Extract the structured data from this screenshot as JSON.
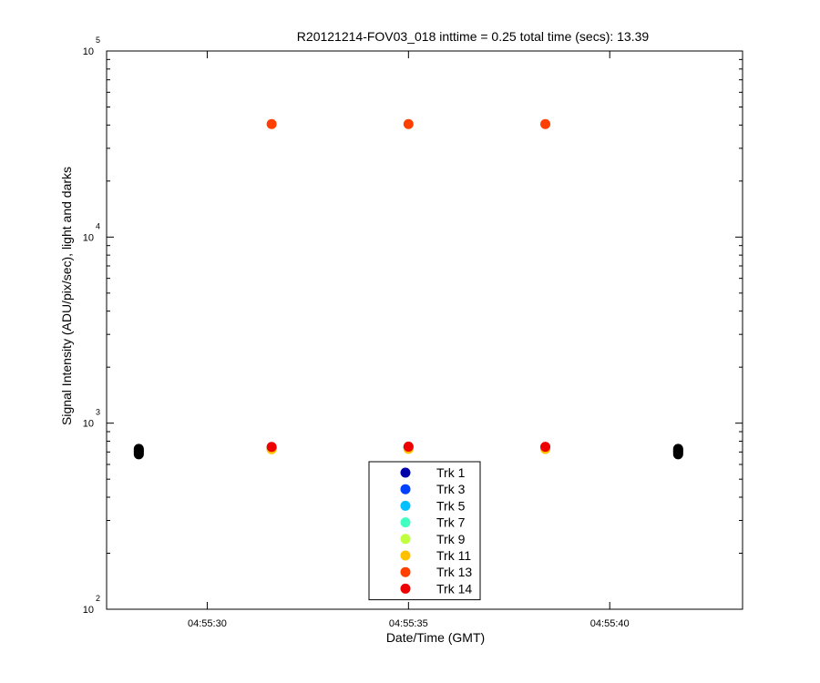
{
  "chart_data": {
    "type": "scatter",
    "title": "R20121214-FOV03_018 inttime = 0.25 total time (secs): 13.39",
    "xlabel": "Date/Time (GMT)",
    "ylabel": "Signal Intensity (ADU/pix/sec), light and darks",
    "y_scale": "log",
    "ylim": [
      100,
      100000
    ],
    "xlim": [
      "04:55:27.5",
      "04:55:43.3"
    ],
    "x_ticks": [
      "04:55:30",
      "04:55:35",
      "04:55:40"
    ],
    "y_ticks": [
      {
        "base": "10",
        "exp": "2",
        "value": 100
      },
      {
        "base": "10",
        "exp": "3",
        "value": 1000
      },
      {
        "base": "10",
        "exp": "4",
        "value": 10000
      },
      {
        "base": "10",
        "exp": "5",
        "value": 100000
      }
    ],
    "grid": false,
    "legend_position": "bottom-center",
    "series": [
      {
        "name": "Trk 1",
        "color": "#0000aa",
        "x": [
          "04:55:31.6",
          "04:55:35.0",
          "04:55:38.4"
        ],
        "y": [
          735,
          740,
          738
        ]
      },
      {
        "name": "Trk 3",
        "color": "#0040ff",
        "x": [
          "04:55:31.6",
          "04:55:35.0",
          "04:55:38.4"
        ],
        "y": [
          735,
          740,
          738
        ]
      },
      {
        "name": "Trk 5",
        "color": "#00c0ff",
        "x": [
          "04:55:31.6",
          "04:55:35.0",
          "04:55:38.4"
        ],
        "y": [
          735,
          740,
          738
        ]
      },
      {
        "name": "Trk 7",
        "color": "#40ffc0",
        "x": [
          "04:55:31.6",
          "04:55:35.0",
          "04:55:38.4"
        ],
        "y": [
          735,
          740,
          738
        ]
      },
      {
        "name": "Trk 9",
        "color": "#c0ff40",
        "x": [
          "04:55:31.6",
          "04:55:35.0",
          "04:55:38.4"
        ],
        "y": [
          725,
          728,
          727
        ]
      },
      {
        "name": "Trk 11",
        "color": "#ffc000",
        "x": [
          "04:55:31.6",
          "04:55:35.0",
          "04:55:38.4"
        ],
        "y": [
          725,
          728,
          727
        ]
      },
      {
        "name": "Trk 13",
        "color": "#ff4000",
        "x": [
          "04:55:31.6",
          "04:55:35.0",
          "04:55:38.4"
        ],
        "y": [
          40500,
          40500,
          40500
        ]
      },
      {
        "name": "Trk 14",
        "color": "#ee0000",
        "x": [
          "04:55:31.6",
          "04:55:35.0",
          "04:55:38.4"
        ],
        "y": [
          745,
          748,
          746
        ]
      }
    ],
    "dark_points": {
      "color": "#000000",
      "x": [
        "04:55:28.3",
        "04:55:28.3",
        "04:55:28.3",
        "04:55:28.3",
        "04:55:28.3",
        "04:55:41.7",
        "04:55:41.7",
        "04:55:41.7",
        "04:55:41.7",
        "04:55:41.7"
      ],
      "y": [
        680,
        695,
        705,
        715,
        728,
        680,
        695,
        705,
        715,
        728
      ]
    }
  }
}
